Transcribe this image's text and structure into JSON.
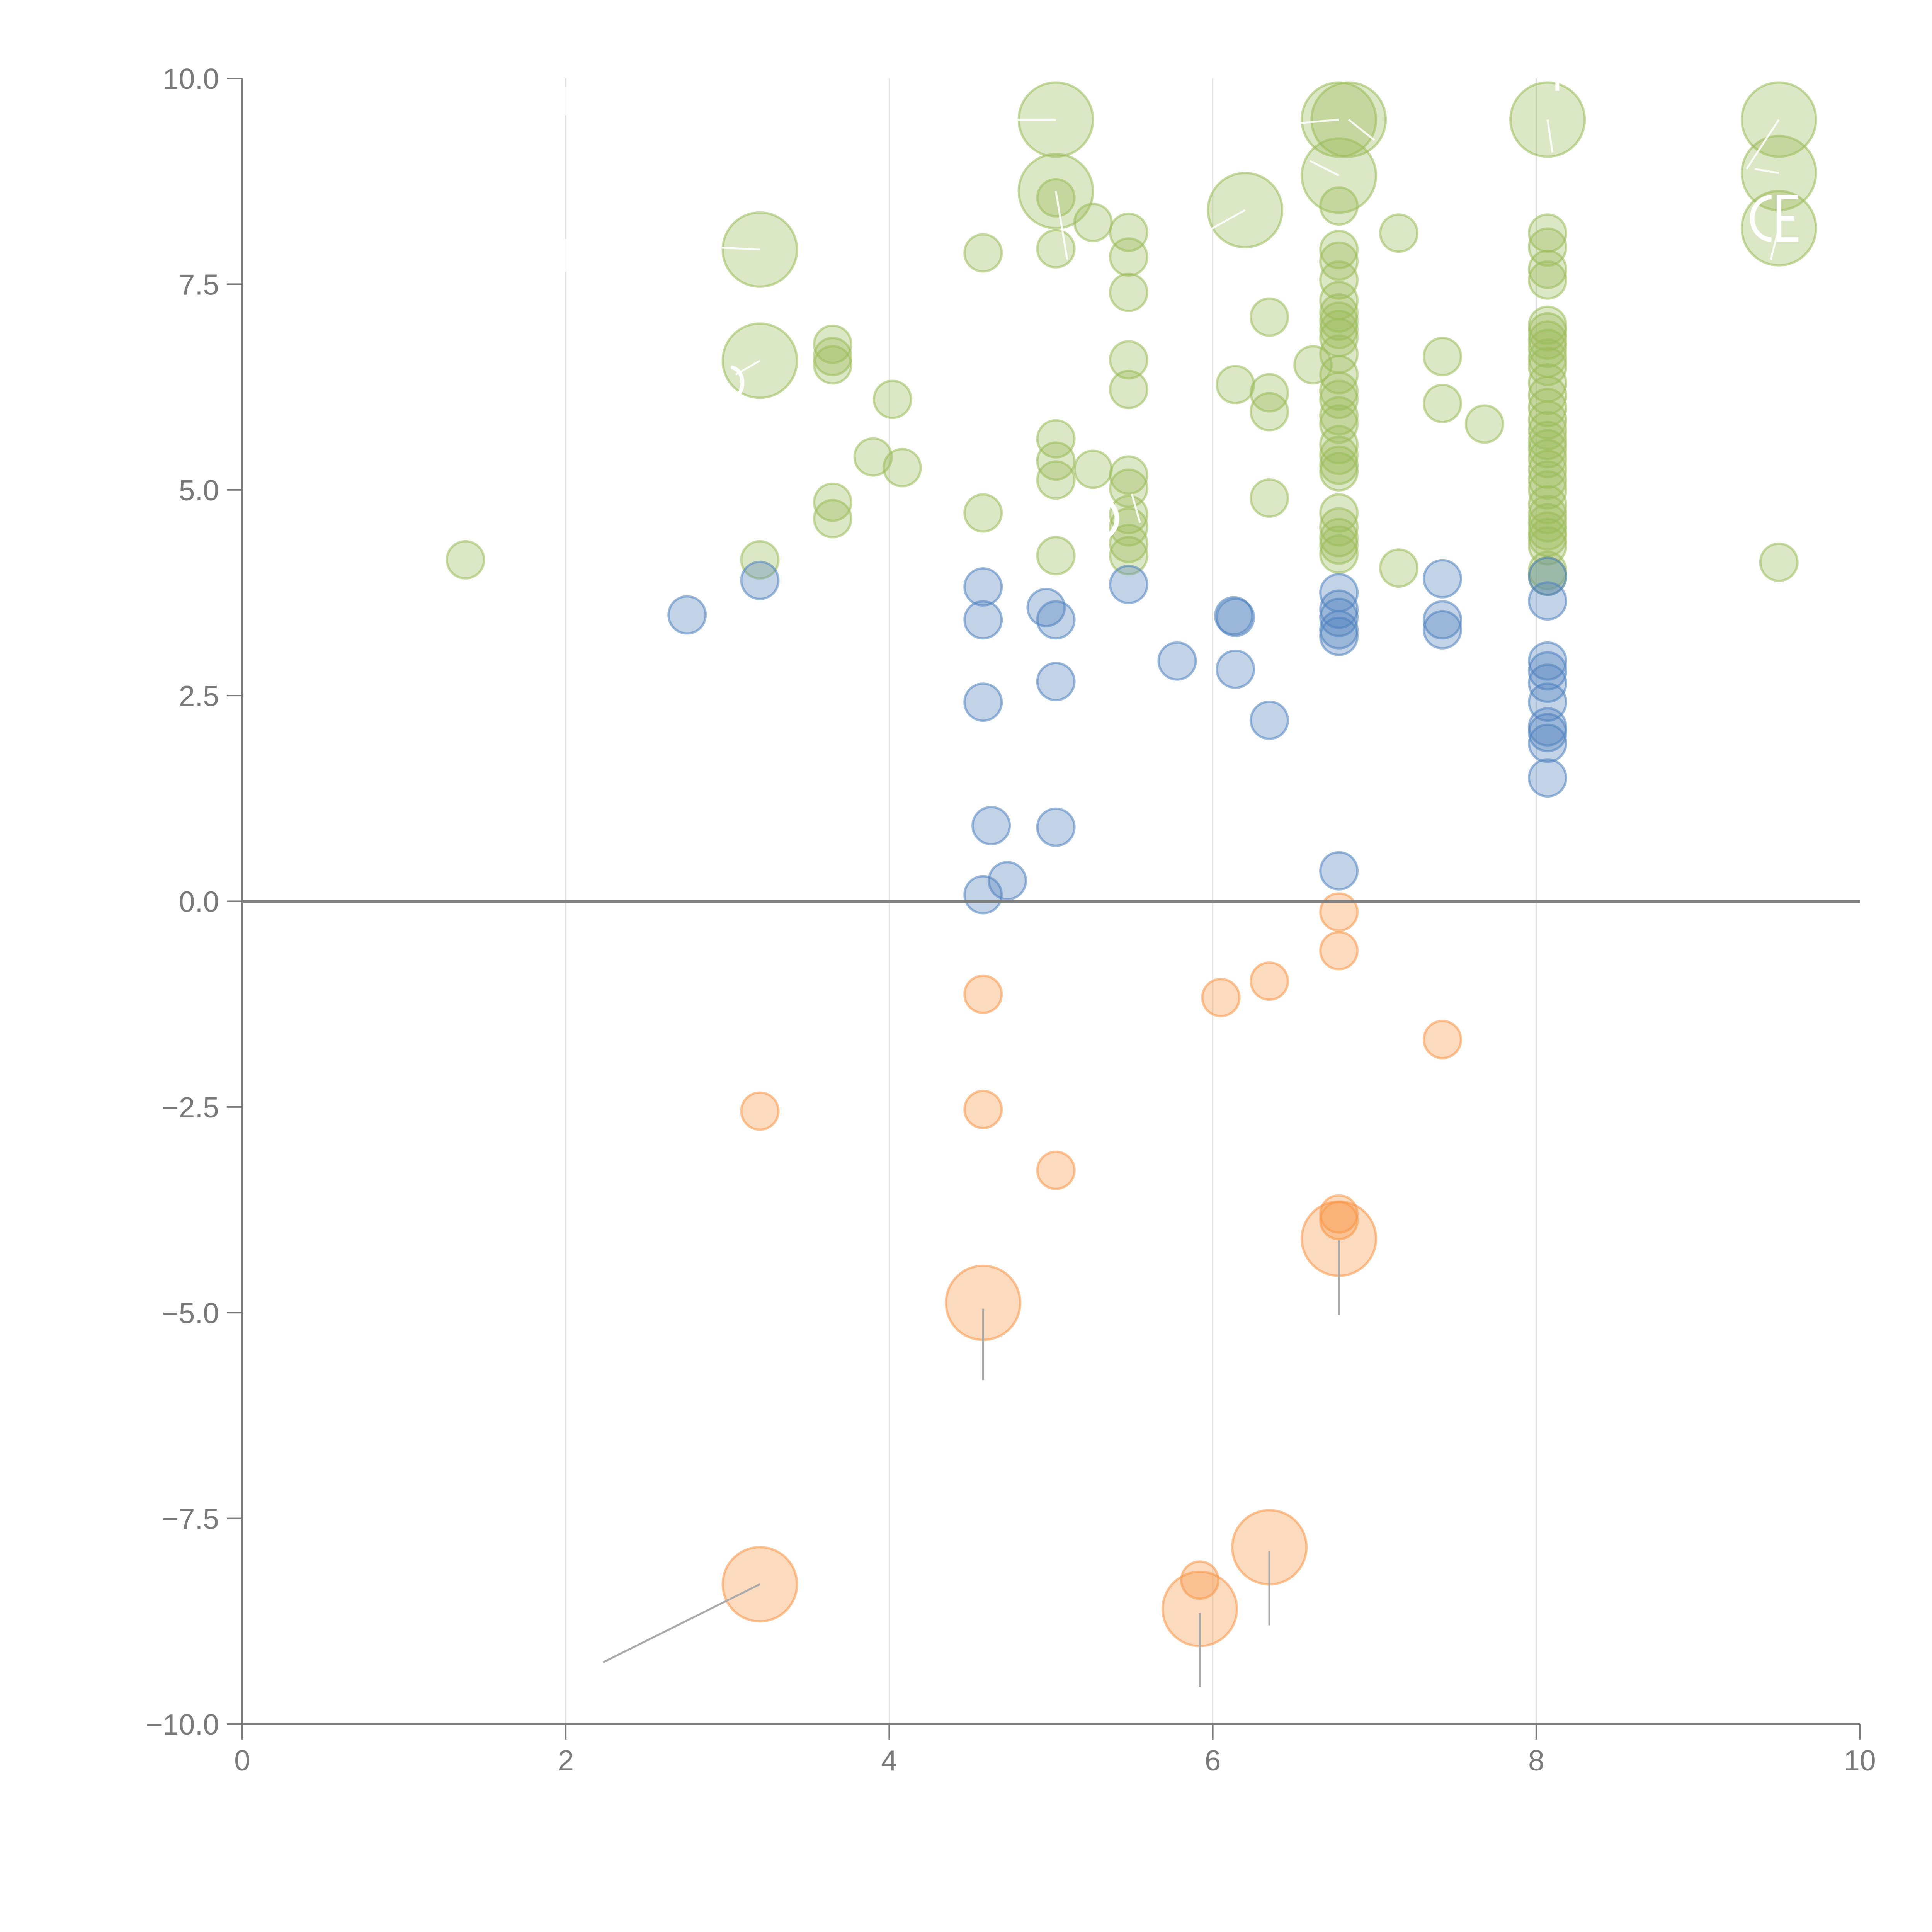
{
  "chart_data": {
    "type": "scatter",
    "title": "",
    "xlabel": "",
    "ylabel": "",
    "xlim": [
      0,
      10
    ],
    "ylim": [
      -10,
      10
    ],
    "x_ticks": [
      {
        "value": 0,
        "label": "0"
      },
      {
        "value": 2,
        "label": "2"
      },
      {
        "value": 4,
        "label": "4"
      },
      {
        "value": 6,
        "label": "6"
      },
      {
        "value": 8,
        "label": "8"
      },
      {
        "value": 10,
        "label": "10"
      }
    ],
    "y_ticks": [
      {
        "value": 10,
        "label": "10.0"
      },
      {
        "value": 7.5,
        "label": "7.5"
      },
      {
        "value": 5,
        "label": "5.0"
      },
      {
        "value": 2.5,
        "label": "2.5"
      },
      {
        "value": 0,
        "label": "0.0"
      },
      {
        "value": -2.5,
        "label": "−2.5"
      },
      {
        "value": -5,
        "label": "−5.0"
      },
      {
        "value": -7.5,
        "label": "−7.5"
      },
      {
        "value": -10,
        "label": "−10.0"
      }
    ],
    "vertical_gridlines_at": [
      2,
      4,
      6,
      8
    ],
    "reference_line_y": 0,
    "size_units": "relative (1 = small marker, 2 = large marker)",
    "series": [
      {
        "name": "green",
        "color": "#9bbb59",
        "points": [
          [
            1.38,
            4.15,
            1
          ],
          [
            3.2,
            4.15,
            1
          ],
          [
            3.2,
            7.92,
            2
          ],
          [
            3.2,
            6.57,
            2
          ],
          [
            3.65,
            6.77,
            1
          ],
          [
            3.65,
            6.62,
            1
          ],
          [
            3.65,
            6.52,
            1
          ],
          [
            3.65,
            4.85,
            1
          ],
          [
            3.65,
            4.65,
            1
          ],
          [
            3.9,
            5.4,
            1
          ],
          [
            4.02,
            6.1,
            1
          ],
          [
            4.08,
            5.27,
            1
          ],
          [
            4.58,
            7.88,
            1
          ],
          [
            4.58,
            4.72,
            1
          ],
          [
            5.03,
            9.5,
            2
          ],
          [
            5.03,
            8.63,
            2
          ],
          [
            5.03,
            8.55,
            1
          ],
          [
            5.03,
            7.93,
            1
          ],
          [
            5.03,
            5.62,
            1
          ],
          [
            5.03,
            5.35,
            1
          ],
          [
            5.03,
            5.12,
            1
          ],
          [
            5.03,
            4.2,
            1
          ],
          [
            5.26,
            8.25,
            1
          ],
          [
            5.26,
            5.25,
            1
          ],
          [
            5.48,
            8.13,
            1
          ],
          [
            5.48,
            7.83,
            1
          ],
          [
            5.48,
            7.4,
            1
          ],
          [
            5.48,
            6.58,
            1
          ],
          [
            5.48,
            6.22,
            1
          ],
          [
            5.48,
            5.18,
            1
          ],
          [
            5.48,
            5.02,
            1
          ],
          [
            5.48,
            4.7,
            1
          ],
          [
            5.48,
            4.55,
            1
          ],
          [
            5.48,
            4.35,
            1
          ],
          [
            5.48,
            4.2,
            1
          ],
          [
            6.14,
            6.28,
            1
          ],
          [
            6.2,
            8.4,
            2
          ],
          [
            6.35,
            7.1,
            1
          ],
          [
            6.35,
            6.18,
            1
          ],
          [
            6.35,
            5.95,
            1
          ],
          [
            6.35,
            4.9,
            1
          ],
          [
            6.62,
            6.52,
            1
          ],
          [
            6.78,
            9.5,
            2
          ],
          [
            6.84,
            9.5,
            2
          ],
          [
            6.78,
            8.82,
            2
          ],
          [
            6.78,
            8.45,
            1
          ],
          [
            6.78,
            7.92,
            1
          ],
          [
            6.78,
            7.78,
            1
          ],
          [
            6.78,
            7.55,
            1
          ],
          [
            6.78,
            7.3,
            1
          ],
          [
            6.78,
            7.15,
            1
          ],
          [
            6.78,
            7.05,
            1
          ],
          [
            6.78,
            6.95,
            1
          ],
          [
            6.78,
            6.85,
            1
          ],
          [
            6.78,
            6.65,
            1
          ],
          [
            6.78,
            6.4,
            1
          ],
          [
            6.78,
            6.2,
            1
          ],
          [
            6.78,
            6.1,
            1
          ],
          [
            6.78,
            5.9,
            1
          ],
          [
            6.78,
            5.8,
            1
          ],
          [
            6.78,
            5.55,
            1
          ],
          [
            6.78,
            5.42,
            1
          ],
          [
            6.78,
            5.3,
            1
          ],
          [
            6.78,
            5.22,
            1
          ],
          [
            6.78,
            4.72,
            1
          ],
          [
            6.78,
            4.55,
            1
          ],
          [
            6.78,
            4.42,
            1
          ],
          [
            6.78,
            4.33,
            1
          ],
          [
            6.78,
            4.22,
            1
          ],
          [
            7.15,
            8.12,
            1
          ],
          [
            7.15,
            4.05,
            1
          ],
          [
            7.42,
            6.62,
            1
          ],
          [
            7.42,
            6.05,
            1
          ],
          [
            7.68,
            5.8,
            1
          ],
          [
            8.07,
            9.5,
            2
          ],
          [
            8.07,
            8.12,
            1
          ],
          [
            8.07,
            7.95,
            1
          ],
          [
            8.07,
            7.68,
            1
          ],
          [
            8.07,
            7.55,
            1
          ],
          [
            8.07,
            7.0,
            1
          ],
          [
            8.07,
            6.92,
            1
          ],
          [
            8.07,
            6.82,
            1
          ],
          [
            8.07,
            6.72,
            1
          ],
          [
            8.07,
            6.6,
            1
          ],
          [
            8.07,
            6.5,
            1
          ],
          [
            8.07,
            6.3,
            1
          ],
          [
            8.07,
            6.15,
            1
          ],
          [
            8.07,
            6.0,
            1
          ],
          [
            8.07,
            5.85,
            1
          ],
          [
            8.07,
            5.72,
            1
          ],
          [
            8.07,
            5.6,
            1
          ],
          [
            8.07,
            5.5,
            1
          ],
          [
            8.07,
            5.38,
            1
          ],
          [
            8.07,
            5.25,
            1
          ],
          [
            8.07,
            5.12,
            1
          ],
          [
            8.07,
            5.0,
            1
          ],
          [
            8.07,
            4.82,
            1
          ],
          [
            8.07,
            4.7,
            1
          ],
          [
            8.07,
            4.6,
            1
          ],
          [
            8.07,
            4.5,
            1
          ],
          [
            8.07,
            4.42,
            1
          ],
          [
            8.07,
            4.32,
            1
          ],
          [
            8.07,
            4.02,
            1
          ],
          [
            8.07,
            3.95,
            1
          ],
          [
            9.5,
            9.5,
            2
          ],
          [
            9.5,
            8.85,
            2
          ],
          [
            9.5,
            8.18,
            2
          ],
          [
            9.5,
            4.12,
            1
          ]
        ]
      },
      {
        "name": "blue",
        "color": "#4f81bd",
        "points": [
          [
            2.75,
            3.48,
            1
          ],
          [
            3.2,
            3.9,
            1
          ],
          [
            4.58,
            3.82,
            1
          ],
          [
            4.58,
            3.42,
            1
          ],
          [
            4.58,
            2.42,
            1
          ],
          [
            4.58,
            0.08,
            1
          ],
          [
            4.63,
            0.92,
            1
          ],
          [
            4.73,
            0.25,
            1
          ],
          [
            4.97,
            3.57,
            1
          ],
          [
            5.03,
            3.42,
            1
          ],
          [
            5.03,
            2.67,
            1
          ],
          [
            5.03,
            0.9,
            1
          ],
          [
            5.48,
            3.85,
            1
          ],
          [
            5.78,
            2.92,
            1
          ],
          [
            6.13,
            3.47,
            1
          ],
          [
            6.14,
            3.45,
            1
          ],
          [
            6.14,
            2.82,
            1
          ],
          [
            6.35,
            2.2,
            1
          ],
          [
            6.78,
            3.75,
            1
          ],
          [
            6.78,
            3.55,
            1
          ],
          [
            6.78,
            3.45,
            1
          ],
          [
            6.78,
            3.3,
            1
          ],
          [
            6.78,
            3.22,
            1
          ],
          [
            6.78,
            0.37,
            1
          ],
          [
            7.42,
            3.92,
            1
          ],
          [
            7.42,
            3.42,
            1
          ],
          [
            7.42,
            3.3,
            1
          ],
          [
            8.07,
            3.95,
            1
          ],
          [
            8.07,
            3.65,
            1
          ],
          [
            8.07,
            2.92,
            1
          ],
          [
            8.07,
            2.8,
            1
          ],
          [
            8.07,
            2.65,
            1
          ],
          [
            8.07,
            2.42,
            1
          ],
          [
            8.07,
            2.12,
            1
          ],
          [
            8.07,
            2.05,
            1
          ],
          [
            8.07,
            1.92,
            1
          ],
          [
            8.07,
            1.5,
            1
          ]
        ]
      },
      {
        "name": "orange",
        "color": "#f79646",
        "points": [
          [
            3.2,
            -2.55,
            1
          ],
          [
            3.2,
            -8.3,
            2
          ],
          [
            4.58,
            -1.13,
            1
          ],
          [
            4.58,
            -2.53,
            1
          ],
          [
            4.58,
            -4.88,
            2
          ],
          [
            5.03,
            -3.27,
            1
          ],
          [
            5.92,
            -8.25,
            1
          ],
          [
            5.92,
            -8.6,
            2
          ],
          [
            6.05,
            -1.17,
            1
          ],
          [
            6.35,
            -0.97,
            1
          ],
          [
            6.35,
            -7.85,
            2
          ],
          [
            6.78,
            -0.13,
            1
          ],
          [
            6.78,
            -0.6,
            1
          ],
          [
            6.78,
            -3.8,
            1
          ],
          [
            6.78,
            -3.88,
            1
          ],
          [
            6.78,
            -4.1,
            2
          ],
          [
            7.42,
            -1.68,
            1
          ]
        ]
      }
    ],
    "leader_lines": [
      {
        "from": [
          3.2,
          -8.3
        ],
        "to": [
          2.23,
          -9.25
        ]
      },
      {
        "from": [
          4.58,
          -4.95
        ],
        "to": [
          4.58,
          -5.82
        ]
      },
      {
        "from": [
          6.78,
          -4.12
        ],
        "to": [
          6.78,
          -5.03
        ]
      },
      {
        "from": [
          5.92,
          -8.65
        ],
        "to": [
          5.92,
          -9.55
        ]
      },
      {
        "from": [
          6.35,
          -7.9
        ],
        "to": [
          6.35,
          -8.8
        ]
      }
    ]
  }
}
